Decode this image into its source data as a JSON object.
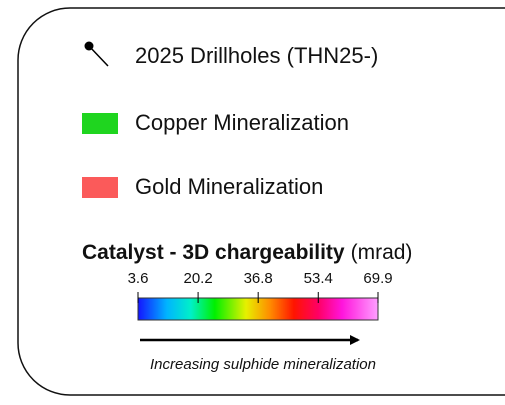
{
  "legend": {
    "items": [
      {
        "label": "2025 Drillholes (THN25-)",
        "symbol": "drillhole"
      },
      {
        "label": "Copper Mineralization",
        "symbol": "swatch",
        "color": "#1fd51f"
      },
      {
        "label": "Gold Mineralization",
        "symbol": "swatch",
        "color": "#fb5a5a"
      }
    ],
    "colorbar": {
      "title": "Catalyst - 3D chargeability",
      "unit": "(mrad)",
      "ticks": [
        3.6,
        20.2,
        36.8,
        53.4,
        69.9
      ],
      "caption": "Increasing sulphide mineralization"
    }
  }
}
